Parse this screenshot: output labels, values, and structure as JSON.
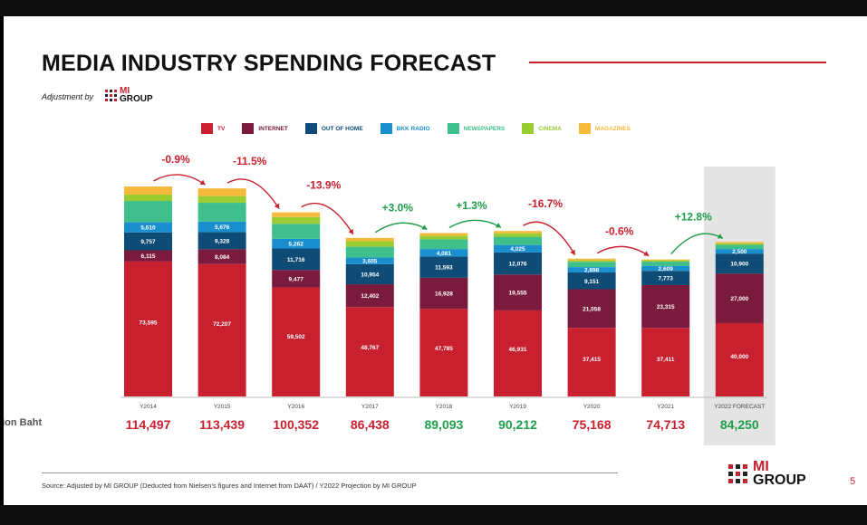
{
  "slide": {
    "title": "MEDIA INDUSTRY SPENDING FORECAST",
    "adjustment_label": "Adjustment by",
    "logo_line1": "MI",
    "logo_line2": "GROUP",
    "unit_label": "llion Baht",
    "source": "Source: Adjusted by MI GROUP (Deducted from Nielsen's figures and Internet from DAAT) / Y2022 Projection by MI GROUP",
    "page_number": "5"
  },
  "colors": {
    "TV": "#c9202f",
    "INTERNET": "#7a1a3c",
    "OUT OF HOME": "#0f4c75",
    "BKK RADIO": "#1a8fd0",
    "NEWSPAPERS": "#3fbf8b",
    "CINEMA": "#9acd32",
    "MAGAZINES": "#f6b93b",
    "growth_up": "#1e9e4a",
    "growth_down": "#c9202f"
  },
  "chart_data": {
    "type": "bar",
    "stacked": true,
    "categories": [
      "Y2014",
      "Y2015",
      "Y2016",
      "Y2017",
      "Y2018",
      "Y2019",
      "Y2020",
      "Y2021",
      "Y2022 FORECAST"
    ],
    "series": [
      {
        "name": "TV",
        "values": [
          73595,
          72207,
          59502,
          48767,
          47785,
          46931,
          37415,
          37411,
          40000
        ],
        "labels": [
          "73,595",
          "72,207",
          "59,502",
          "48,767",
          "47,785",
          "46,931",
          "37,415",
          "37,411",
          "40,000"
        ]
      },
      {
        "name": "INTERNET",
        "values": [
          6115,
          8084,
          9477,
          12402,
          16928,
          19555,
          21058,
          23315,
          27000
        ],
        "labels": [
          "6,115",
          "8,084",
          "9,477",
          "12,402",
          "16,928",
          "19,555",
          "21,058",
          "23,315",
          "27,000"
        ]
      },
      {
        "name": "OUT OF HOME",
        "values": [
          9757,
          9328,
          11716,
          10954,
          11593,
          12076,
          9151,
          7773,
          10900
        ],
        "labels": [
          "9,757",
          "9,328",
          "11,716",
          "10,954",
          "11,593",
          "12,076",
          "9,151",
          "7,773",
          "10,900"
        ]
      },
      {
        "name": "BKK RADIO",
        "values": [
          5610,
          5676,
          5262,
          3605,
          4081,
          4025,
          2898,
          2609,
          2500
        ],
        "labels": [
          "5,610",
          "5,676",
          "5,262",
          "3,605",
          "4,081",
          "4,025",
          "2,898",
          "2,609",
          "2,500"
        ]
      },
      {
        "name": "NEWSPAPERS",
        "values": [
          11500,
          10300,
          8200,
          5900,
          5300,
          4500,
          2900,
          2400,
          2250
        ]
      },
      {
        "name": "CINEMA",
        "values": [
          3500,
          3650,
          3700,
          3000,
          2000,
          1900,
          800,
          720,
          850
        ]
      },
      {
        "name": "MAGAZINES",
        "values": [
          4420,
          4194,
          2495,
          1810,
          1406,
          1225,
          946,
          485,
          750
        ]
      }
    ],
    "totals": [
      "114,497",
      "113,439",
      "100,352",
      "86,438",
      "89,093",
      "90,212",
      "75,168",
      "74,713",
      "84,250"
    ],
    "growth": [
      {
        "label": "-0.9%",
        "direction": "down"
      },
      {
        "label": "-11.5%",
        "direction": "down"
      },
      {
        "label": "-13.9%",
        "direction": "down"
      },
      {
        "label": "+3.0%",
        "direction": "up"
      },
      {
        "label": "+1.3%",
        "direction": "up"
      },
      {
        "label": "-16.7%",
        "direction": "down"
      },
      {
        "label": "-0.6%",
        "direction": "down"
      },
      {
        "label": "+12.8%",
        "direction": "up"
      }
    ],
    "highlight_category": "Y2022 FORECAST",
    "legend_position": "top"
  }
}
